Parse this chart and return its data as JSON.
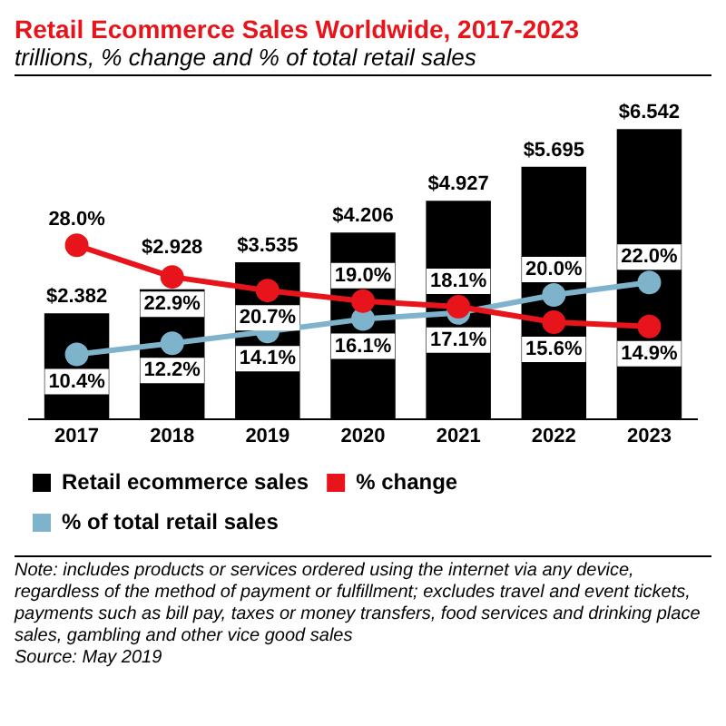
{
  "chart_data": {
    "type": "bar",
    "title": "Retail Ecommerce Sales Worldwide, 2017-2023",
    "subtitle": "trillions, % change and % of total retail sales",
    "categories": [
      "2017",
      "2018",
      "2019",
      "2020",
      "2021",
      "2022",
      "2023"
    ],
    "series": [
      {
        "name": "Retail ecommerce sales",
        "color": "#000000",
        "values": [
          2.382,
          2.928,
          3.535,
          4.206,
          4.927,
          5.695,
          6.542
        ],
        "value_labels": [
          "$2.382",
          "$2.928",
          "$3.535",
          "$4.206",
          "$4.927",
          "$5.695",
          "$6.542"
        ]
      },
      {
        "name": "% change",
        "type": "line",
        "axis": "y2",
        "color": "#e8141b",
        "values": [
          28.0,
          22.9,
          20.7,
          19.0,
          18.1,
          15.6,
          14.9
        ],
        "value_labels": [
          "28.0%",
          "22.9%",
          "20.7%",
          "19.0%",
          "18.1%",
          "15.6%",
          "14.9%"
        ]
      },
      {
        "name": "% of total retail sales",
        "type": "line",
        "axis": "y2",
        "color": "#7fb3cc",
        "values": [
          10.4,
          12.2,
          14.1,
          16.1,
          17.1,
          20.0,
          22.0
        ],
        "value_labels": [
          "10.4%",
          "12.2%",
          "14.1%",
          "16.1%",
          "17.1%",
          "20.0%",
          "22.0%"
        ]
      }
    ],
    "tick_labels": "x",
    "grid": false,
    "legend": "bottom left",
    "marker": "circle",
    "annotations": [
      "Note: includes products or services ordered using the internet via any device, regardless of the method of payment or fulfillment; excludes travel and event tickets, payments such as bill pay, taxes or money transfers, food services and drinking place sales, gambling and other vice good sales",
      "Source: May 2019"
    ]
  }
}
